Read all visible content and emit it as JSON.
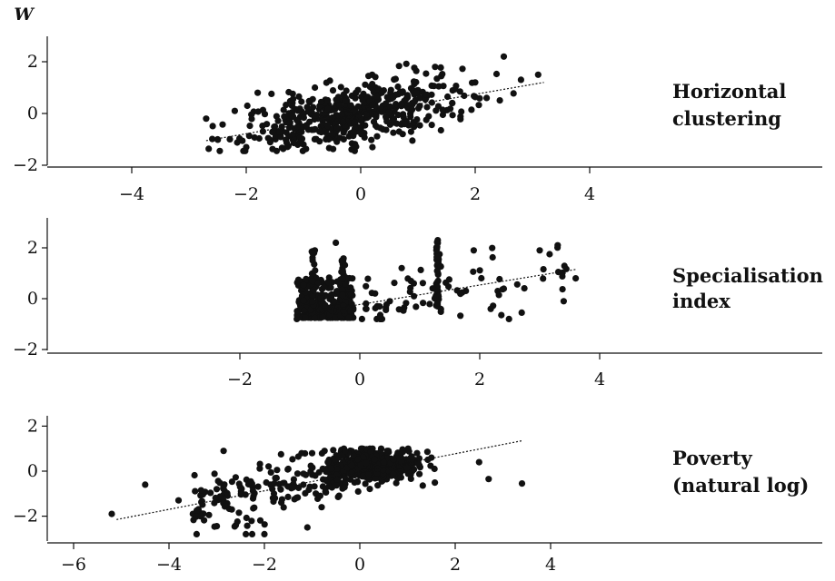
{
  "chart_data": [
    {
      "type": "scatter",
      "label_lines": [
        "Horizontal",
        "clustering"
      ],
      "y_axis_title": "W",
      "xlim": [
        -5.2,
        8
      ],
      "ylim": [
        -2.1,
        2.5
      ],
      "xticks": [
        -4,
        -2,
        0,
        2,
        4
      ],
      "xtick_labels": [
        "−4",
        "−2",
        "0",
        "2",
        "4"
      ],
      "yticks": [
        -2,
        0,
        2
      ],
      "ytick_labels": [
        "−2",
        "0",
        "2"
      ],
      "fit_line": {
        "x": [
          -2.7,
          3.2
        ],
        "y": [
          -1.05,
          1.2
        ]
      },
      "points_sample": [
        {
          "x": -2.7,
          "y": -0.2
        },
        {
          "x": -2.5,
          "y": -1.0
        },
        {
          "x": -2.2,
          "y": 0.1
        },
        {
          "x": -2.0,
          "y": -1.3
        },
        {
          "x": -1.8,
          "y": 0.8
        },
        {
          "x": -1.5,
          "y": -0.5
        },
        {
          "x": -1.2,
          "y": 0.3
        },
        {
          "x": -1.0,
          "y": -1.2
        },
        {
          "x": -0.8,
          "y": 1.0
        },
        {
          "x": -0.6,
          "y": -0.6
        },
        {
          "x": -0.3,
          "y": 0.5
        },
        {
          "x": 0.0,
          "y": -0.2
        },
        {
          "x": 0.2,
          "y": 1.5
        },
        {
          "x": 0.5,
          "y": 0.2
        },
        {
          "x": 0.8,
          "y": -0.3
        },
        {
          "x": 1.0,
          "y": 0.9
        },
        {
          "x": 1.3,
          "y": 1.8
        },
        {
          "x": 1.6,
          "y": 0.4
        },
        {
          "x": 2.0,
          "y": 1.2
        },
        {
          "x": 2.2,
          "y": 0.6
        },
        {
          "x": 2.5,
          "y": 2.2
        },
        {
          "x": 2.8,
          "y": 1.3
        },
        {
          "x": 3.1,
          "y": 1.5
        }
      ]
    },
    {
      "type": "scatter",
      "label_lines": [
        "Specialisation",
        "index"
      ],
      "xlim": [
        -5.2,
        8
      ],
      "ylim": [
        -2.1,
        2.5
      ],
      "xticks": [
        -2,
        0,
        2,
        4
      ],
      "xtick_labels": [
        "−2",
        "0",
        "2",
        "4"
      ],
      "yticks": [
        -2,
        0,
        2
      ],
      "ytick_labels": [
        "−2",
        "0",
        "2"
      ],
      "fit_line": {
        "x": [
          -1.1,
          3.6
        ],
        "y": [
          -0.65,
          1.15
        ]
      },
      "points_sample": [
        {
          "x": -1.05,
          "y": -0.8
        },
        {
          "x": -1.0,
          "y": -0.2
        },
        {
          "x": -0.8,
          "y": -0.5
        },
        {
          "x": -0.75,
          "y": 1.9
        },
        {
          "x": -0.7,
          "y": 0.6
        },
        {
          "x": -0.5,
          "y": -0.7
        },
        {
          "x": -0.4,
          "y": 2.2
        },
        {
          "x": -0.3,
          "y": 1.5
        },
        {
          "x": -0.2,
          "y": 0.2
        },
        {
          "x": 0.1,
          "y": -0.4
        },
        {
          "x": 0.5,
          "y": -0.1
        },
        {
          "x": 0.9,
          "y": 0.6
        },
        {
          "x": 1.3,
          "y": 2.3
        },
        {
          "x": 1.3,
          "y": 0.1
        },
        {
          "x": 1.3,
          "y": -0.3
        },
        {
          "x": 1.9,
          "y": 1.9
        },
        {
          "x": 2.3,
          "y": 0.3
        },
        {
          "x": 2.7,
          "y": -0.55
        },
        {
          "x": 3.0,
          "y": 1.9
        },
        {
          "x": 3.3,
          "y": 2.1
        },
        {
          "x": 3.4,
          "y": -0.1
        },
        {
          "x": 3.6,
          "y": 0.8
        }
      ]
    },
    {
      "type": "scatter",
      "label_lines": [
        "Poverty",
        "(natural log)"
      ],
      "xlim": [
        -6.3,
        7.3
      ],
      "ylim": [
        -2.9,
        3.1
      ],
      "xticks": [
        -6,
        -4,
        -2,
        0,
        2,
        4
      ],
      "xtick_labels": [
        "−6",
        "−4",
        "−2",
        "0",
        "2",
        "4"
      ],
      "yticks": [
        -2,
        0,
        2
      ],
      "ytick_labels": [
        "−2",
        "0",
        "2"
      ],
      "fit_line": {
        "x": [
          -5.1,
          3.4
        ],
        "y": [
          -2.15,
          1.35
        ]
      },
      "points_sample": [
        {
          "x": -5.2,
          "y": -1.9
        },
        {
          "x": -4.5,
          "y": -0.6
        },
        {
          "x": -3.8,
          "y": -1.3
        },
        {
          "x": -3.5,
          "y": -1.9
        },
        {
          "x": -3.0,
          "y": -0.8
        },
        {
          "x": -2.6,
          "y": -2.4
        },
        {
          "x": -2.0,
          "y": -2.8
        },
        {
          "x": -1.8,
          "y": -1.0
        },
        {
          "x": -1.5,
          "y": 0.1
        },
        {
          "x": -1.1,
          "y": -2.5
        },
        {
          "x": -1.0,
          "y": 0.8
        },
        {
          "x": -0.8,
          "y": -1.6
        },
        {
          "x": -0.5,
          "y": 0.4
        },
        {
          "x": 0.0,
          "y": -0.2
        },
        {
          "x": 0.3,
          "y": 0.7
        },
        {
          "x": 0.6,
          "y": 0.9
        },
        {
          "x": 0.9,
          "y": 0.5
        },
        {
          "x": 1.2,
          "y": 0.8
        },
        {
          "x": 1.5,
          "y": 0.6
        },
        {
          "x": 2.5,
          "y": 0.4
        },
        {
          "x": 2.7,
          "y": -0.35
        },
        {
          "x": 3.4,
          "y": -0.55
        }
      ]
    }
  ]
}
